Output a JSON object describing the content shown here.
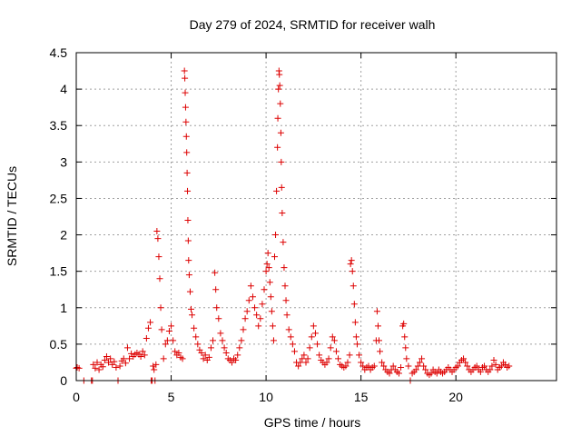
{
  "chart_data": {
    "type": "scatter",
    "title": "Day 279 of 2024, SRMTID for receiver walh",
    "xlabel": "GPS time / hours",
    "ylabel": "SRMTID / TECUs",
    "xlim": [
      0,
      25.3
    ],
    "ylim": [
      0,
      4.5
    ],
    "x_ticks": [
      "0",
      "5",
      "10",
      "15",
      "20"
    ],
    "y_ticks": [
      "0",
      "0.5",
      "1",
      "1.5",
      "2",
      "2.5",
      "3",
      "3.5",
      "4",
      "4.5"
    ],
    "grid": true,
    "marker": "+",
    "colors": {
      "marker": "#dd0000"
    },
    "series": [
      {
        "name": "walh",
        "points": [
          [
            0.0,
            0.17
          ],
          [
            0.05,
            0.18
          ],
          [
            0.15,
            0.17
          ],
          [
            0.4,
            0.0
          ],
          [
            0.8,
            0.0
          ],
          [
            0.85,
            0.0
          ],
          [
            0.9,
            0.22
          ],
          [
            1.0,
            0.17
          ],
          [
            1.1,
            0.25
          ],
          [
            1.2,
            0.15
          ],
          [
            1.3,
            0.22
          ],
          [
            1.4,
            0.19
          ],
          [
            1.5,
            0.28
          ],
          [
            1.6,
            0.33
          ],
          [
            1.7,
            0.25
          ],
          [
            1.8,
            0.3
          ],
          [
            1.9,
            0.22
          ],
          [
            2.0,
            0.26
          ],
          [
            2.1,
            0.18
          ],
          [
            2.2,
            0.0
          ],
          [
            2.3,
            0.2
          ],
          [
            2.4,
            0.27
          ],
          [
            2.5,
            0.3
          ],
          [
            2.6,
            0.24
          ],
          [
            2.7,
            0.45
          ],
          [
            2.8,
            0.3
          ],
          [
            2.9,
            0.37
          ],
          [
            3.0,
            0.33
          ],
          [
            3.1,
            0.36
          ],
          [
            3.2,
            0.38
          ],
          [
            3.3,
            0.36
          ],
          [
            3.4,
            0.33
          ],
          [
            3.5,
            0.4
          ],
          [
            3.6,
            0.35
          ],
          [
            3.7,
            0.58
          ],
          [
            3.8,
            0.72
          ],
          [
            3.9,
            0.8
          ],
          [
            3.95,
            0.0
          ],
          [
            4.0,
            0.0
          ],
          [
            4.05,
            0.2
          ],
          [
            4.1,
            0.15
          ],
          [
            4.15,
            0.0
          ],
          [
            4.2,
            0.22
          ],
          [
            4.25,
            2.05
          ],
          [
            4.3,
            1.95
          ],
          [
            4.35,
            1.7
          ],
          [
            4.4,
            1.4
          ],
          [
            4.45,
            1.0
          ],
          [
            4.5,
            0.7
          ],
          [
            4.6,
            0.3
          ],
          [
            4.7,
            0.5
          ],
          [
            4.8,
            0.55
          ],
          [
            4.9,
            0.68
          ],
          [
            5.0,
            0.75
          ],
          [
            5.1,
            0.55
          ],
          [
            5.2,
            0.4
          ],
          [
            5.3,
            0.35
          ],
          [
            5.4,
            0.38
          ],
          [
            5.5,
            0.32
          ],
          [
            5.6,
            0.3
          ],
          [
            5.7,
            4.25
          ],
          [
            5.72,
            4.15
          ],
          [
            5.74,
            3.95
          ],
          [
            5.76,
            3.75
          ],
          [
            5.78,
            3.55
          ],
          [
            5.8,
            3.35
          ],
          [
            5.82,
            3.13
          ],
          [
            5.84,
            2.85
          ],
          [
            5.86,
            2.6
          ],
          [
            5.88,
            2.2
          ],
          [
            5.9,
            1.92
          ],
          [
            5.92,
            1.65
          ],
          [
            5.95,
            1.45
          ],
          [
            6.0,
            1.22
          ],
          [
            6.05,
            0.98
          ],
          [
            6.1,
            0.9
          ],
          [
            6.2,
            0.72
          ],
          [
            6.3,
            0.6
          ],
          [
            6.4,
            0.5
          ],
          [
            6.5,
            0.42
          ],
          [
            6.6,
            0.38
          ],
          [
            6.7,
            0.3
          ],
          [
            6.8,
            0.35
          ],
          [
            6.9,
            0.28
          ],
          [
            7.0,
            0.32
          ],
          [
            7.1,
            0.45
          ],
          [
            7.2,
            0.55
          ],
          [
            7.3,
            1.48
          ],
          [
            7.35,
            1.25
          ],
          [
            7.4,
            1.0
          ],
          [
            7.5,
            0.85
          ],
          [
            7.6,
            0.65
          ],
          [
            7.7,
            0.55
          ],
          [
            7.8,
            0.45
          ],
          [
            7.9,
            0.38
          ],
          [
            8.0,
            0.3
          ],
          [
            8.1,
            0.28
          ],
          [
            8.2,
            0.25
          ],
          [
            8.3,
            0.3
          ],
          [
            8.4,
            0.28
          ],
          [
            8.5,
            0.35
          ],
          [
            8.6,
            0.45
          ],
          [
            8.7,
            0.55
          ],
          [
            8.8,
            0.7
          ],
          [
            8.9,
            0.85
          ],
          [
            9.0,
            0.95
          ],
          [
            9.1,
            1.1
          ],
          [
            9.2,
            1.3
          ],
          [
            9.3,
            1.15
          ],
          [
            9.4,
            1.0
          ],
          [
            9.5,
            0.9
          ],
          [
            9.6,
            0.75
          ],
          [
            9.7,
            0.85
          ],
          [
            9.8,
            1.05
          ],
          [
            9.9,
            1.25
          ],
          [
            10.0,
            1.5
          ],
          [
            10.05,
            1.6
          ],
          [
            10.1,
            1.75
          ],
          [
            10.15,
            1.55
          ],
          [
            10.2,
            1.35
          ],
          [
            10.25,
            1.15
          ],
          [
            10.3,
            0.95
          ],
          [
            10.35,
            0.75
          ],
          [
            10.4,
            0.55
          ],
          [
            10.45,
            1.7
          ],
          [
            10.5,
            2.0
          ],
          [
            10.55,
            2.6
          ],
          [
            10.6,
            3.2
          ],
          [
            10.62,
            3.6
          ],
          [
            10.65,
            4.0
          ],
          [
            10.68,
            4.25
          ],
          [
            10.7,
            4.2
          ],
          [
            10.72,
            4.05
          ],
          [
            10.75,
            3.8
          ],
          [
            10.78,
            3.4
          ],
          [
            10.8,
            3.0
          ],
          [
            10.82,
            2.65
          ],
          [
            10.85,
            2.3
          ],
          [
            10.9,
            1.9
          ],
          [
            10.95,
            1.55
          ],
          [
            11.0,
            1.3
          ],
          [
            11.05,
            1.1
          ],
          [
            11.1,
            0.9
          ],
          [
            11.2,
            0.7
          ],
          [
            11.3,
            0.6
          ],
          [
            11.4,
            0.5
          ],
          [
            11.5,
            0.4
          ],
          [
            11.6,
            0.25
          ],
          [
            11.7,
            0.2
          ],
          [
            11.8,
            0.25
          ],
          [
            11.9,
            0.3
          ],
          [
            12.0,
            0.35
          ],
          [
            12.1,
            0.25
          ],
          [
            12.2,
            0.3
          ],
          [
            12.3,
            0.45
          ],
          [
            12.4,
            0.6
          ],
          [
            12.5,
            0.75
          ],
          [
            12.6,
            0.65
          ],
          [
            12.7,
            0.5
          ],
          [
            12.8,
            0.35
          ],
          [
            12.9,
            0.28
          ],
          [
            13.0,
            0.25
          ],
          [
            13.1,
            0.22
          ],
          [
            13.2,
            0.25
          ],
          [
            13.3,
            0.3
          ],
          [
            13.4,
            0.45
          ],
          [
            13.5,
            0.6
          ],
          [
            13.6,
            0.55
          ],
          [
            13.7,
            0.4
          ],
          [
            13.8,
            0.3
          ],
          [
            13.9,
            0.22
          ],
          [
            14.0,
            0.2
          ],
          [
            14.1,
            0.18
          ],
          [
            14.2,
            0.2
          ],
          [
            14.3,
            0.25
          ],
          [
            14.4,
            0.35
          ],
          [
            14.45,
            1.6
          ],
          [
            14.5,
            1.65
          ],
          [
            14.55,
            1.5
          ],
          [
            14.6,
            1.3
          ],
          [
            14.65,
            1.05
          ],
          [
            14.7,
            0.8
          ],
          [
            14.75,
            0.6
          ],
          [
            14.8,
            0.5
          ],
          [
            14.9,
            0.35
          ],
          [
            15.0,
            0.25
          ],
          [
            15.1,
            0.2
          ],
          [
            15.2,
            0.15
          ],
          [
            15.3,
            0.18
          ],
          [
            15.4,
            0.2
          ],
          [
            15.5,
            0.15
          ],
          [
            15.6,
            0.18
          ],
          [
            15.7,
            0.2
          ],
          [
            15.8,
            0.55
          ],
          [
            15.85,
            0.95
          ],
          [
            15.9,
            0.75
          ],
          [
            15.95,
            0.55
          ],
          [
            16.0,
            0.4
          ],
          [
            16.1,
            0.25
          ],
          [
            16.2,
            0.2
          ],
          [
            16.3,
            0.15
          ],
          [
            16.4,
            0.12
          ],
          [
            16.5,
            0.1
          ],
          [
            16.6,
            0.15
          ],
          [
            16.7,
            0.2
          ],
          [
            16.8,
            0.15
          ],
          [
            16.9,
            0.12
          ],
          [
            17.0,
            0.1
          ],
          [
            17.1,
            0.18
          ],
          [
            17.2,
            0.75
          ],
          [
            17.25,
            0.78
          ],
          [
            17.3,
            0.6
          ],
          [
            17.35,
            0.45
          ],
          [
            17.4,
            0.3
          ],
          [
            17.5,
            0.2
          ],
          [
            17.6,
            0.0
          ],
          [
            17.7,
            0.1
          ],
          [
            17.8,
            0.12
          ],
          [
            17.9,
            0.15
          ],
          [
            18.0,
            0.2
          ],
          [
            18.1,
            0.25
          ],
          [
            18.2,
            0.3
          ],
          [
            18.3,
            0.2
          ],
          [
            18.4,
            0.15
          ],
          [
            18.5,
            0.1
          ],
          [
            18.6,
            0.08
          ],
          [
            18.7,
            0.1
          ],
          [
            18.8,
            0.15
          ],
          [
            18.9,
            0.12
          ],
          [
            19.0,
            0.1
          ],
          [
            19.1,
            0.15
          ],
          [
            19.2,
            0.12
          ],
          [
            19.3,
            0.1
          ],
          [
            19.4,
            0.12
          ],
          [
            19.5,
            0.15
          ],
          [
            19.6,
            0.18
          ],
          [
            19.7,
            0.15
          ],
          [
            19.8,
            0.12
          ],
          [
            19.9,
            0.15
          ],
          [
            20.0,
            0.18
          ],
          [
            20.1,
            0.2
          ],
          [
            20.2,
            0.25
          ],
          [
            20.3,
            0.28
          ],
          [
            20.4,
            0.3
          ],
          [
            20.5,
            0.25
          ],
          [
            20.6,
            0.2
          ],
          [
            20.7,
            0.15
          ],
          [
            20.8,
            0.12
          ],
          [
            20.9,
            0.15
          ],
          [
            21.0,
            0.18
          ],
          [
            21.1,
            0.2
          ],
          [
            21.2,
            0.15
          ],
          [
            21.3,
            0.12
          ],
          [
            21.4,
            0.18
          ],
          [
            21.5,
            0.2
          ],
          [
            21.6,
            0.15
          ],
          [
            21.7,
            0.12
          ],
          [
            21.8,
            0.15
          ],
          [
            21.9,
            0.2
          ],
          [
            22.0,
            0.28
          ],
          [
            22.1,
            0.22
          ],
          [
            22.2,
            0.15
          ],
          [
            22.3,
            0.18
          ],
          [
            22.4,
            0.2
          ],
          [
            22.5,
            0.25
          ],
          [
            22.6,
            0.22
          ],
          [
            22.7,
            0.18
          ],
          [
            22.8,
            0.2
          ]
        ]
      }
    ]
  }
}
